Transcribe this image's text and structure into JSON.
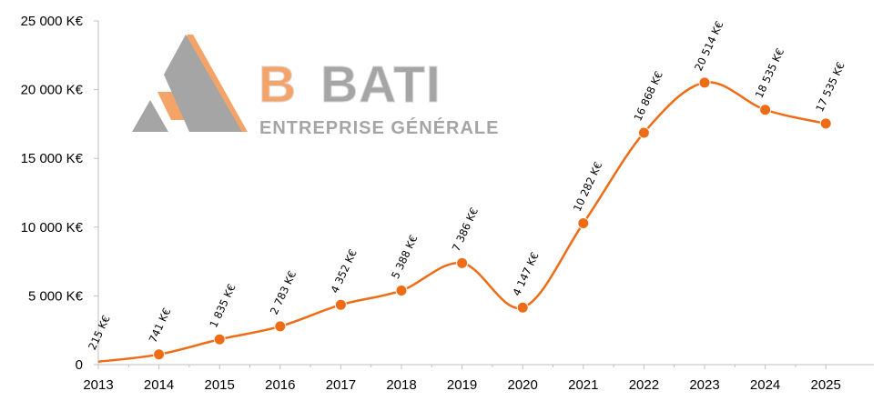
{
  "colors": {
    "series": "#ef6c16",
    "axis": "#bfbfbf",
    "logo_orange": "#f4a469",
    "logo_gray": "#a5a5a5"
  },
  "logo": {
    "letter": "B",
    "word": "BATI",
    "tagline": "ENTREPRISE GÉNÉRALE"
  },
  "chart_data": {
    "type": "line",
    "smooth": true,
    "x": [
      2013,
      2014,
      2015,
      2016,
      2017,
      2018,
      2019,
      2020,
      2021,
      2022,
      2023,
      2024,
      2025
    ],
    "series": [
      {
        "values": [
          215,
          741,
          1835,
          2783,
          4352,
          5388,
          7386,
          4147,
          10282,
          16868,
          20514,
          18535,
          17535
        ],
        "labels": [
          "215 K€",
          "741 K€",
          "1 835 K€",
          "2 783 K€",
          "4 352 K€",
          "5 388 K€",
          "7 386 K€",
          "4 147 K€",
          "10 282 K€",
          "16 868 K€",
          "20 514 K€",
          "18 535 K€",
          "17 535 K€"
        ]
      }
    ],
    "ylim": [
      0,
      25000
    ],
    "yticks": [
      0,
      5000,
      10000,
      15000,
      20000,
      25000
    ],
    "yticklabels": [
      "0",
      "5 000 K€",
      "10 000 K€",
      "15 000 K€",
      "20 000 K€",
      "25 000 K€"
    ],
    "xticklabels": [
      "2013",
      "2014",
      "2015",
      "2016",
      "2017",
      "2018",
      "2019",
      "2020",
      "2021",
      "2022",
      "2023",
      "2024",
      "2025"
    ],
    "grid": false,
    "legend": "none"
  }
}
